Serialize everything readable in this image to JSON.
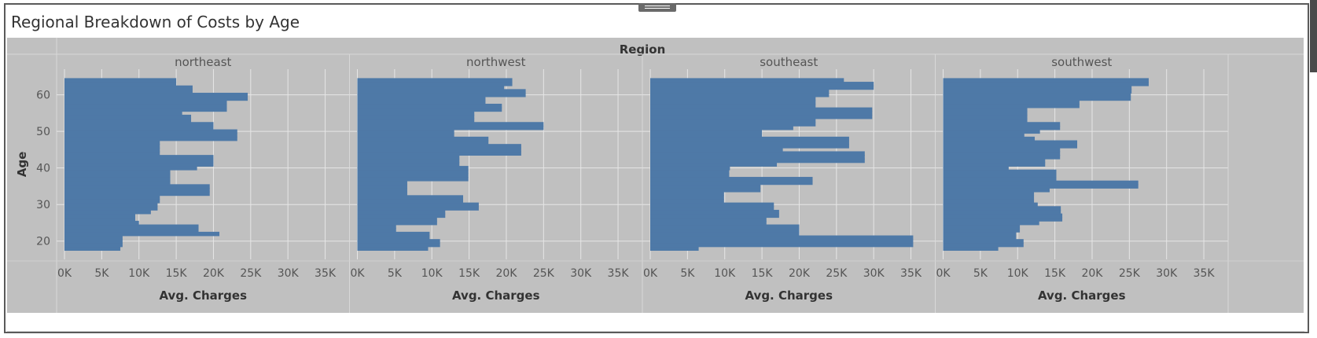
{
  "title": "Regional Breakdown of Costs by Age",
  "chart_data": {
    "type": "bar",
    "orientation": "horizontal",
    "column_header": "Region",
    "panels": [
      "northeast",
      "northwest",
      "southeast",
      "southwest"
    ],
    "xlabel": "Avg. Charges",
    "ylabel": "Age",
    "xlim": [
      0,
      37000
    ],
    "ylim": [
      15,
      67
    ],
    "xticks": [
      0,
      5000,
      10000,
      15000,
      20000,
      25000,
      30000,
      35000
    ],
    "xtick_labels": [
      "0K",
      "5K",
      "10K",
      "15K",
      "20K",
      "25K",
      "30K",
      "35K"
    ],
    "yticks": [
      20,
      30,
      40,
      50,
      60
    ],
    "ytick_labels": [
      "20",
      "30",
      "40",
      "50",
      "60"
    ],
    "bar_color": "#4e79a7",
    "grid": true,
    "ages": [
      18,
      19,
      20,
      21,
      22,
      23,
      24,
      25,
      26,
      27,
      28,
      29,
      30,
      31,
      32,
      33,
      34,
      35,
      36,
      37,
      38,
      39,
      40,
      41,
      42,
      43,
      44,
      45,
      46,
      47,
      48,
      49,
      50,
      51,
      52,
      53,
      54,
      55,
      56,
      57,
      58,
      59,
      60,
      61,
      62,
      63,
      64
    ],
    "series": [
      {
        "name": "northeast",
        "values": [
          7500,
          7800,
          7800,
          7800,
          20800,
          18000,
          18000,
          10000,
          9500,
          9500,
          11600,
          12500,
          12500,
          12800,
          12800,
          19500,
          19500,
          19500,
          14200,
          14200,
          14200,
          14200,
          17800,
          20000,
          20000,
          20000,
          12800,
          12800,
          12800,
          12800,
          23200,
          23200,
          23200,
          20000,
          20000,
          17000,
          17000,
          15800,
          21800,
          21800,
          21800,
          24600,
          24600,
          17200,
          17200,
          15000,
          15000
        ]
      },
      {
        "name": "northwest",
        "values": [
          9500,
          11100,
          11100,
          9700,
          9700,
          5200,
          5200,
          10700,
          10700,
          11800,
          11800,
          16300,
          16300,
          14200,
          14200,
          6700,
          6700,
          6700,
          6700,
          14900,
          14900,
          14900,
          14900,
          13700,
          13700,
          13700,
          22000,
          22000,
          22000,
          17600,
          17600,
          13000,
          13000,
          25000,
          25000,
          15700,
          15700,
          15700,
          19400,
          19400,
          17200,
          17200,
          22600,
          22600,
          19700,
          20800,
          20800
        ]
      },
      {
        "name": "southeast",
        "values": [
          6500,
          35300,
          35300,
          35300,
          20000,
          20000,
          20000,
          15600,
          15600,
          17300,
          17300,
          16600,
          16600,
          9900,
          9900,
          9900,
          14800,
          14800,
          21800,
          21800,
          10600,
          10600,
          10700,
          17000,
          28800,
          28800,
          28800,
          17800,
          26700,
          26700,
          26700,
          15000,
          15000,
          19200,
          22200,
          22200,
          29800,
          29800,
          29800,
          22200,
          22200,
          22200,
          24000,
          24000,
          30000,
          30000,
          26000
        ]
      },
      {
        "name": "southwest",
        "values": [
          7400,
          10800,
          10800,
          9800,
          9800,
          10300,
          10300,
          12900,
          16000,
          16000,
          15800,
          15800,
          12700,
          12200,
          12200,
          12200,
          14300,
          26200,
          26200,
          15200,
          15200,
          15200,
          8800,
          13700,
          13700,
          15700,
          15700,
          15700,
          18000,
          18000,
          12300,
          10900,
          13000,
          15700,
          15700,
          11300,
          11300,
          11300,
          11300,
          18300,
          18300,
          25200,
          25200,
          25300,
          25300,
          27600,
          27600
        ]
      }
    ]
  }
}
